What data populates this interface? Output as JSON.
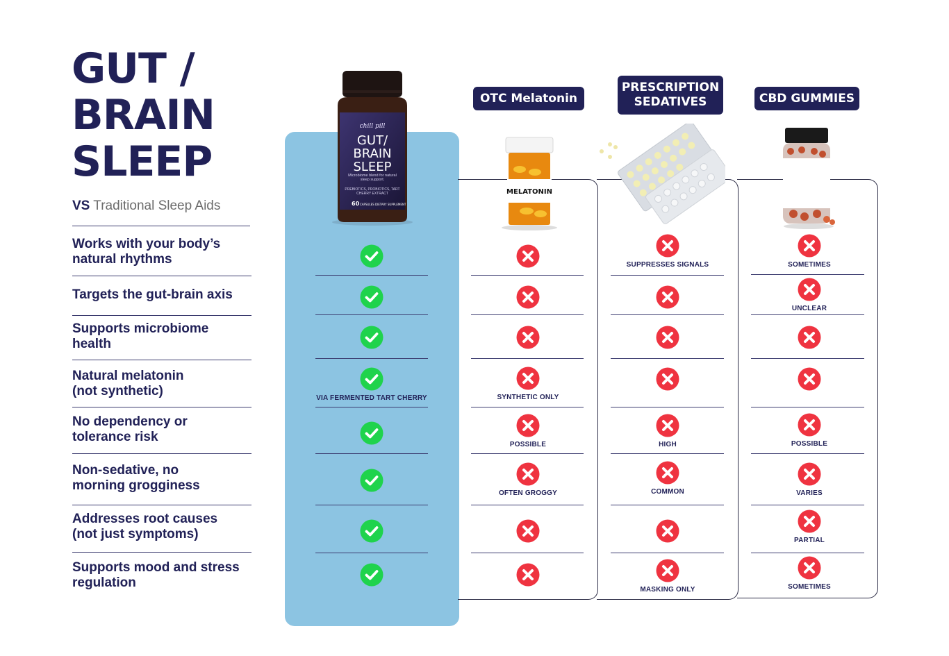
{
  "title": {
    "line1": "GUT /",
    "line2": "BRAIN",
    "line3": "SLEEP"
  },
  "subtitle": {
    "vs": "VS",
    "rest": " Traditional Sleep Aids"
  },
  "rows": [
    "Works with your body’s natural rhythms",
    "Targets the gut-brain axis",
    "Supports microbiome health",
    "Natural melatonin (not synthetic)",
    "No dependency or tolerance risk",
    "Non-sedative, no morning grogginess",
    "Addresses root causes (not just symptoms)",
    "Supports mood and stress regulation"
  ],
  "columns": {
    "product": {
      "bottle_brand": "chill pill",
      "bottle_name_1": "GUT/",
      "bottle_name_2": "BRAIN",
      "bottle_name_3": "SLEEP",
      "bottle_desc": "Microbiome blend for natural sleep support.",
      "bottle_ing": "PREBIOTICS, PROBIOTICS, TART CHERRY EXTRACT",
      "bottle_count": "60",
      "bottle_count_label": "CAPSULES  DIETARY SUPPLEMENT",
      "notes": [
        "",
        "",
        "",
        "VIA FERMENTED TART CHERRY",
        "",
        "",
        "",
        ""
      ]
    },
    "melatonin": {
      "header": "OTC Melatonin",
      "bottle_label": "MELATONIN",
      "notes": [
        "",
        "",
        "",
        "SYNTHETIC ONLY",
        "POSSIBLE",
        "OFTEN GROGGY",
        "",
        ""
      ]
    },
    "sedatives": {
      "header_1": "PRESCRIPTION",
      "header_2": "SEDATIVES",
      "notes": [
        "SUPPRESSES SIGNALS",
        "",
        "",
        "",
        "HIGH",
        "COMMON",
        "",
        "MASKING ONLY"
      ]
    },
    "cbd": {
      "header": "CBD GUMMIES",
      "notes": [
        "SOMETIMES",
        "UNCLEAR",
        "",
        "",
        "POSSIBLE",
        "VARIES",
        "PARTIAL",
        "SOMETIMES"
      ]
    }
  },
  "colors": {
    "navy": "#212157",
    "highlight": "#8cc4e2",
    "check": "#1fd34c",
    "cross": "#ef3340"
  }
}
